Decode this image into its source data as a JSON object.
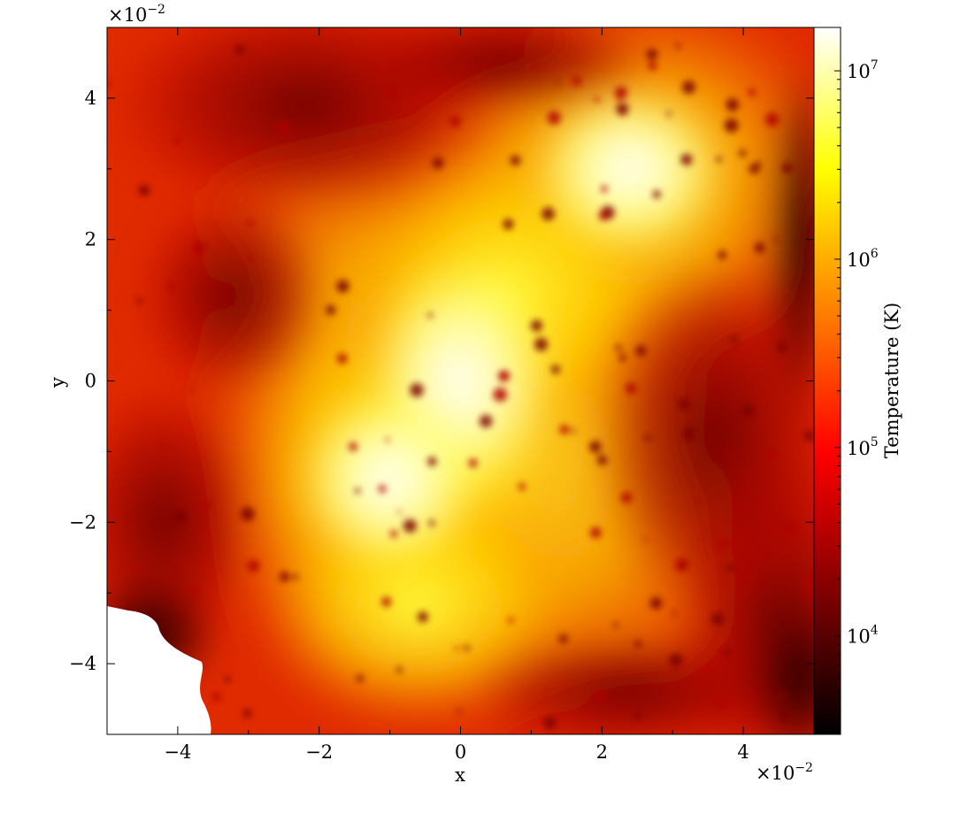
{
  "chart_data": {
    "type": "heatmap",
    "title": "",
    "xlabel": "x",
    "ylabel": "y",
    "xlim": [
      -5,
      5
    ],
    "ylim": [
      -5,
      5
    ],
    "axis_scale_exponent_label": "×10",
    "axis_scale_exponent": "−2",
    "xticks": [
      -4,
      -2,
      0,
      2,
      4
    ],
    "yticks": [
      -4,
      -2,
      0,
      2,
      4
    ],
    "xtick_labels": [
      "−4",
      "−2",
      "0",
      "2",
      "4"
    ],
    "ytick_labels": [
      "−4",
      "−2",
      "0",
      "2",
      "4"
    ],
    "grid": false,
    "colormap": "hot",
    "colorbar": {
      "label": "Temperature (K)",
      "scale": "log",
      "range": [
        3000,
        17000000
      ],
      "ticks": [
        10000,
        100000,
        1000000,
        10000000
      ],
      "tick_bases": [
        "10",
        "10",
        "10",
        "10"
      ],
      "tick_exponents": [
        "4",
        "5",
        "6",
        "7"
      ],
      "colors": [
        "#000000",
        "#400000",
        "#800000",
        "#c00000",
        "#ff0000",
        "#ff4000",
        "#ff8000",
        "#ffbf00",
        "#ffff00",
        "#ffff80",
        "#ffffff"
      ]
    },
    "features": [
      {
        "kind": "hot-core",
        "x": 0.0,
        "y": 0.0,
        "temperature_K": 3000000
      },
      {
        "kind": "hot-region",
        "x": -1.2,
        "y": -1.5,
        "temperature_K": 2000000
      },
      {
        "kind": "hot-region",
        "x": 2.5,
        "y": 3.0,
        "temperature_K": 2500000
      },
      {
        "kind": "hot-region",
        "x": 1.2,
        "y": 2.0,
        "temperature_K": 1500000
      },
      {
        "kind": "cool-region",
        "x": -2.3,
        "y": 4.0,
        "temperature_K": 15000
      },
      {
        "kind": "cool-region",
        "x": 4.5,
        "y": -3.5,
        "temperature_K": 8000
      },
      {
        "kind": "cool-region",
        "x": -4.6,
        "y": -3.2,
        "temperature_K": 5000
      },
      {
        "kind": "empty-region",
        "x": -4.5,
        "y": -4.5
      }
    ]
  }
}
